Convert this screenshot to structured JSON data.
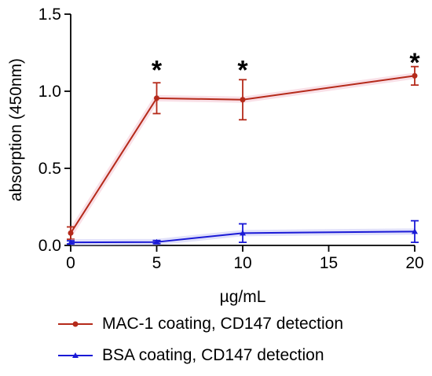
{
  "chart_data": {
    "type": "line",
    "xlabel": "µg/mL",
    "ylabel": "absorption (450nm)",
    "xlim": [
      0,
      20
    ],
    "ylim": [
      0,
      1.5
    ],
    "x_ticks": [
      "0",
      "5",
      "10",
      "15",
      "20"
    ],
    "y_ticks": [
      "0.0",
      "0.5",
      "1.0",
      "1.5"
    ],
    "x": [
      0,
      5,
      10,
      20
    ],
    "grid": false,
    "legend_position": "bottom",
    "series": [
      {
        "name": "MAC-1 coating, CD147 detection",
        "color": "#b52a1a",
        "marker": "circle",
        "values": [
          0.08,
          0.955,
          0.945,
          1.1
        ],
        "error": [
          0.04,
          0.1,
          0.13,
          0.06
        ]
      },
      {
        "name": "BSA coating, CD147 detection",
        "color": "#1a1ad6",
        "marker": "triangle",
        "values": [
          0.02,
          0.022,
          0.08,
          0.09
        ],
        "error": [
          0.01,
          0.01,
          0.06,
          0.07
        ]
      }
    ],
    "annotations": [
      {
        "text": "*",
        "x": 5,
        "y": 1.15
      },
      {
        "text": "*",
        "x": 10,
        "y": 1.15
      },
      {
        "text": "*",
        "x": 20,
        "y": 1.2
      }
    ]
  }
}
